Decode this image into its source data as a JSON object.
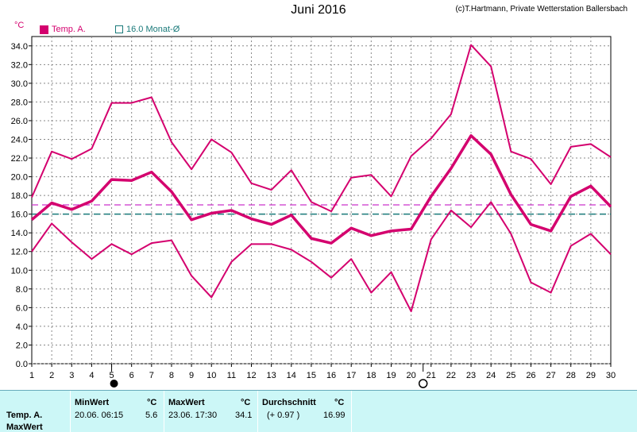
{
  "header": {
    "title": "Juni 2016",
    "credit": "(c)T.Hartmann, Private Wetterstation Ballersbach",
    "unit": "°C"
  },
  "legend": {
    "temp_label": "Temp. A.",
    "monthly_label": "16.0 Monat-Ø"
  },
  "colors": {
    "temp": "#d4006e",
    "avg_line": "#cc33cc",
    "monthly_line": "#1a7a7a",
    "grid": "#888888",
    "panel": "#ccf7f7"
  },
  "chart_data": {
    "type": "line",
    "x": [
      1,
      2,
      3,
      4,
      5,
      6,
      7,
      8,
      9,
      10,
      11,
      12,
      13,
      14,
      15,
      16,
      17,
      18,
      19,
      20,
      21,
      22,
      23,
      24,
      25,
      26,
      27,
      28,
      29,
      30
    ],
    "series": [
      {
        "values": [
          17.8,
          22.7,
          21.9,
          23.0,
          27.9,
          27.9,
          28.5,
          23.7,
          20.8,
          24.0,
          22.6,
          19.3,
          18.6,
          20.7,
          17.3,
          16.3,
          19.9,
          20.2,
          17.9,
          22.2,
          24.1,
          26.7,
          34.1,
          31.8,
          22.7,
          21.9,
          19.2,
          23.2,
          23.5,
          22.1
        ]
      },
      {
        "values": [
          15.4,
          17.2,
          16.5,
          17.4,
          19.7,
          19.6,
          20.5,
          18.4,
          15.4,
          16.1,
          16.4,
          15.5,
          14.9,
          15.9,
          13.4,
          12.9,
          14.5,
          13.7,
          14.2,
          14.4,
          17.9,
          20.9,
          24.4,
          22.4,
          18.1,
          14.9,
          14.2,
          17.9,
          19.0,
          16.8
        ]
      },
      {
        "values": [
          12.0,
          15.0,
          13.0,
          11.2,
          12.8,
          11.7,
          12.9,
          13.2,
          9.4,
          7.1,
          10.9,
          12.8,
          12.8,
          12.2,
          10.9,
          9.2,
          11.2,
          7.6,
          9.8,
          5.6,
          13.3,
          16.4,
          14.6,
          17.3,
          13.9,
          8.7,
          7.6,
          12.6,
          13.9,
          11.7
        ]
      }
    ],
    "avg_value": 16.99,
    "monthly_avg": 16.0,
    "ylim": [
      0,
      35
    ],
    "yticks": [
      "0.0",
      "2.0",
      "4.0",
      "6.0",
      "8.0",
      "10.0",
      "12.0",
      "14.0",
      "16.0",
      "18.0",
      "20.0",
      "22.0",
      "24.0",
      "26.0",
      "28.0",
      "30.0",
      "32.0",
      "34.0"
    ],
    "grid": true,
    "moon_markers": [
      {
        "day": 5,
        "phase": "new"
      },
      {
        "day": 20.6,
        "phase": "full"
      }
    ]
  },
  "stats": {
    "row_label": "Temp. A.",
    "row_label2": "MaxWert",
    "min_header": "MinWert",
    "min_unit": "°C",
    "min_time": "20.06.  06:15",
    "min_value": "5.6",
    "max_header": "MaxWert",
    "max_unit": "°C",
    "max_time": "23.06.  17:30",
    "max_value": "34.1",
    "avg_header": "Durchschnitt",
    "avg_unit": "°C",
    "avg_delta": "(+ 0.97 )",
    "avg_value": "16.99"
  }
}
